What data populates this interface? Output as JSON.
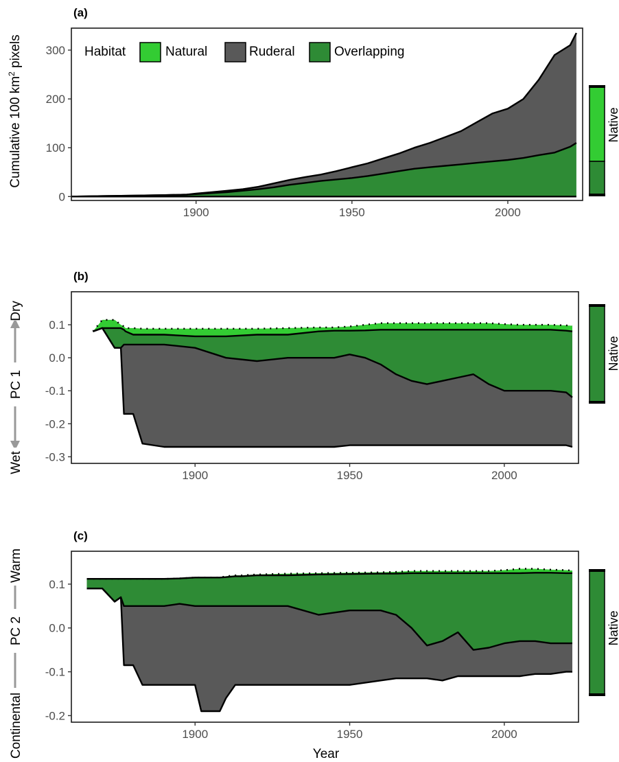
{
  "colors": {
    "natural": "#33cc33",
    "ruderal": "#595959",
    "overlapping": "#2e8b35",
    "frame": "#1a1a1a",
    "arrow": "#999999"
  },
  "chart_data": [
    {
      "panel": "(a)",
      "type": "area",
      "ylabel_main": "Cumulative 100 km",
      "ylabel_sup": "2",
      "ylabel_tail": " pixels",
      "xlim": [
        1860,
        2024
      ],
      "ylim": [
        -8,
        345
      ],
      "xticks": [
        1900,
        1950,
        2000
      ],
      "xtick_labels": [
        "1900",
        "1950",
        "2000"
      ],
      "yticks": [
        0,
        100,
        200,
        300
      ],
      "ytick_labels": [
        "0",
        "100",
        "200",
        "300"
      ],
      "legend": {
        "title": "Habitat",
        "entries": [
          {
            "label": "Natural",
            "key": "natural"
          },
          {
            "label": "Ruderal",
            "key": "ruderal"
          },
          {
            "label": "Overlapping",
            "key": "overlapping"
          }
        ]
      },
      "series": [
        {
          "name": "Overlapping",
          "key": "overlapping",
          "x": [
            1860,
            1870,
            1880,
            1890,
            1897,
            1900,
            1905,
            1910,
            1915,
            1920,
            1925,
            1930,
            1935,
            1940,
            1945,
            1950,
            1955,
            1960,
            1965,
            1970,
            1975,
            1980,
            1985,
            1990,
            1995,
            2000,
            2005,
            2010,
            2015,
            2020,
            2022
          ],
          "y": [
            0,
            1,
            2,
            3,
            4,
            5,
            7,
            9,
            12,
            15,
            19,
            24,
            28,
            32,
            35,
            38,
            42,
            47,
            52,
            57,
            60,
            63,
            66,
            69,
            72,
            75,
            79,
            85,
            90,
            102,
            110
          ]
        },
        {
          "name": "Ruderal",
          "key": "ruderal",
          "x": [
            1860,
            1870,
            1880,
            1890,
            1897,
            1900,
            1905,
            1910,
            1915,
            1920,
            1925,
            1930,
            1935,
            1940,
            1945,
            1950,
            1955,
            1960,
            1965,
            1970,
            1975,
            1980,
            1985,
            1990,
            1995,
            2000,
            2005,
            2010,
            2015,
            2020,
            2022
          ],
          "y": [
            0,
            1,
            2,
            3,
            4,
            6,
            9,
            12,
            15,
            20,
            27,
            34,
            40,
            45,
            52,
            60,
            68,
            78,
            88,
            100,
            110,
            122,
            134,
            152,
            170,
            180,
            200,
            240,
            290,
            310,
            335
          ]
        }
      ],
      "side_bar": {
        "label": "Native",
        "segments": [
          {
            "key": "natural",
            "from": 0.0,
            "to": 0.69
          },
          {
            "key": "overlapping",
            "from": 0.69,
            "to": 1.0
          }
        ]
      }
    },
    {
      "panel": "(b)",
      "type": "area",
      "ylabel_center": "PC 1",
      "ylabel_top": "Dry",
      "ylabel_bottom": "Wet",
      "xlim": [
        1860,
        2024
      ],
      "ylim": [
        -0.32,
        0.2
      ],
      "xticks": [
        1900,
        1950,
        2000
      ],
      "xtick_labels": [
        "1900",
        "1950",
        "2000"
      ],
      "yticks": [
        0.1,
        0.0,
        -0.1,
        -0.2,
        -0.3
      ],
      "ytick_labels": [
        "0.1",
        "0.0",
        "-0.1",
        "-0.2",
        "-0.3"
      ],
      "bands": {
        "x": [
          1867,
          1870,
          1874,
          1876,
          1877,
          1877.5,
          1880,
          1883,
          1890,
          1900,
          1910,
          1920,
          1930,
          1940,
          1945,
          1950,
          1955,
          1960,
          1965,
          1970,
          1975,
          1980,
          1985,
          1990,
          1995,
          2000,
          2005,
          2010,
          2015,
          2020,
          2022
        ],
        "natural_top": [
          0.08,
          0.115,
          0.115,
          0.1,
          0.095,
          0.09,
          0.09,
          0.088,
          0.088,
          0.088,
          0.088,
          0.088,
          0.09,
          0.092,
          0.092,
          0.095,
          0.1,
          0.105,
          0.105,
          0.105,
          0.105,
          0.105,
          0.105,
          0.105,
          0.105,
          0.102,
          0.1,
          0.1,
          0.1,
          0.098,
          0.097
        ],
        "overlap_top": [
          0.08,
          0.09,
          0.09,
          0.09,
          0.085,
          0.08,
          0.07,
          0.07,
          0.07,
          0.065,
          0.065,
          0.07,
          0.07,
          0.08,
          0.082,
          0.082,
          0.083,
          0.085,
          0.085,
          0.085,
          0.085,
          0.085,
          0.085,
          0.085,
          0.085,
          0.085,
          0.085,
          0.085,
          0.085,
          0.082,
          0.08
        ],
        "ruderal_top": [
          0.08,
          0.09,
          0.03,
          0.03,
          0.04,
          0.04,
          0.04,
          0.04,
          0.04,
          0.03,
          0.0,
          -0.01,
          0.0,
          0.0,
          0.0,
          0.01,
          0.0,
          -0.02,
          -0.05,
          -0.07,
          -0.08,
          -0.07,
          -0.06,
          -0.05,
          -0.08,
          -0.1,
          -0.1,
          -0.1,
          -0.1,
          -0.105,
          -0.12
        ],
        "bottom": [
          0.08,
          0.09,
          0.03,
          0.03,
          -0.17,
          -0.17,
          -0.17,
          -0.26,
          -0.27,
          -0.27,
          -0.27,
          -0.27,
          -0.27,
          -0.27,
          -0.27,
          -0.265,
          -0.265,
          -0.265,
          -0.265,
          -0.265,
          -0.265,
          -0.265,
          -0.265,
          -0.265,
          -0.265,
          -0.265,
          -0.265,
          -0.265,
          -0.265,
          -0.265,
          -0.27
        ]
      },
      "side_bar": {
        "label": "Native",
        "segments": [
          {
            "key": "overlapping",
            "from": 0.0,
            "to": 1.0
          }
        ]
      }
    },
    {
      "panel": "(c)",
      "type": "area",
      "ylabel_center": "PC 2",
      "ylabel_top": "Warm",
      "ylabel_bottom": "Continental",
      "xlabel": "Year",
      "xlim": [
        1860,
        2024
      ],
      "ylim": [
        -0.215,
        0.175
      ],
      "xticks": [
        1900,
        1950,
        2000
      ],
      "xtick_labels": [
        "1900",
        "1950",
        "2000"
      ],
      "yticks": [
        0.1,
        0.0,
        -0.1,
        -0.2
      ],
      "ytick_labels": [
        "0.1",
        "0.0",
        "-0.1",
        "-0.2"
      ],
      "bands": {
        "x": [
          1865,
          1870,
          1874,
          1876,
          1877,
          1877.5,
          1880,
          1883,
          1890,
          1895,
          1900,
          1902,
          1905,
          1908,
          1910,
          1913,
          1915,
          1920,
          1930,
          1940,
          1950,
          1960,
          1965,
          1970,
          1975,
          1980,
          1985,
          1990,
          1995,
          2000,
          2005,
          2010,
          2015,
          2020,
          2022
        ],
        "natural_top": [
          0.112,
          0.112,
          0.112,
          0.112,
          0.112,
          0.112,
          0.112,
          0.112,
          0.112,
          0.113,
          0.115,
          0.115,
          0.115,
          0.115,
          0.118,
          0.12,
          0.12,
          0.122,
          0.124,
          0.125,
          0.126,
          0.127,
          0.128,
          0.13,
          0.13,
          0.13,
          0.13,
          0.13,
          0.13,
          0.132,
          0.135,
          0.135,
          0.133,
          0.132,
          0.131
        ],
        "overlap_top": [
          0.112,
          0.112,
          0.112,
          0.112,
          0.112,
          0.112,
          0.112,
          0.112,
          0.112,
          0.113,
          0.115,
          0.115,
          0.115,
          0.115,
          0.116,
          0.118,
          0.118,
          0.12,
          0.12,
          0.122,
          0.123,
          0.124,
          0.124,
          0.125,
          0.125,
          0.125,
          0.125,
          0.125,
          0.125,
          0.125,
          0.125,
          0.126,
          0.126,
          0.125,
          0.125
        ],
        "ruderal_top": [
          0.09,
          0.09,
          0.06,
          0.07,
          0.05,
          0.05,
          0.05,
          0.05,
          0.05,
          0.055,
          0.05,
          0.05,
          0.05,
          0.05,
          0.05,
          0.05,
          0.05,
          0.05,
          0.05,
          0.03,
          0.04,
          0.04,
          0.03,
          0.0,
          -0.04,
          -0.03,
          -0.01,
          -0.05,
          -0.045,
          -0.035,
          -0.03,
          -0.03,
          -0.035,
          -0.035,
          -0.035
        ],
        "bottom": [
          0.09,
          0.09,
          0.06,
          0.07,
          -0.085,
          -0.085,
          -0.085,
          -0.13,
          -0.13,
          -0.13,
          -0.13,
          -0.19,
          -0.19,
          -0.19,
          -0.16,
          -0.13,
          -0.13,
          -0.13,
          -0.13,
          -0.13,
          -0.13,
          -0.12,
          -0.115,
          -0.115,
          -0.115,
          -0.12,
          -0.11,
          -0.11,
          -0.11,
          -0.11,
          -0.11,
          -0.105,
          -0.105,
          -0.1,
          -0.1
        ]
      },
      "side_bar": {
        "label": "Native",
        "segments": [
          {
            "key": "overlapping",
            "from": 0.0,
            "to": 1.0
          }
        ]
      }
    }
  ]
}
